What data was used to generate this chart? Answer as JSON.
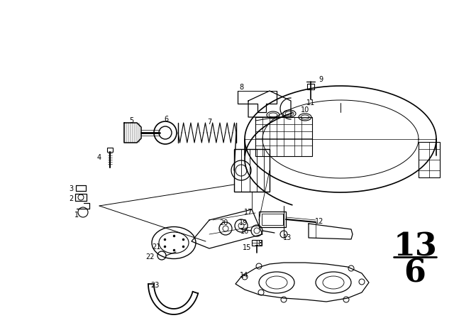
{
  "bg_color": "#ffffff",
  "line_color": "#000000",
  "page_number": "13",
  "page_sub": "6",
  "figsize": [
    6.4,
    4.48
  ],
  "dpi": 100
}
